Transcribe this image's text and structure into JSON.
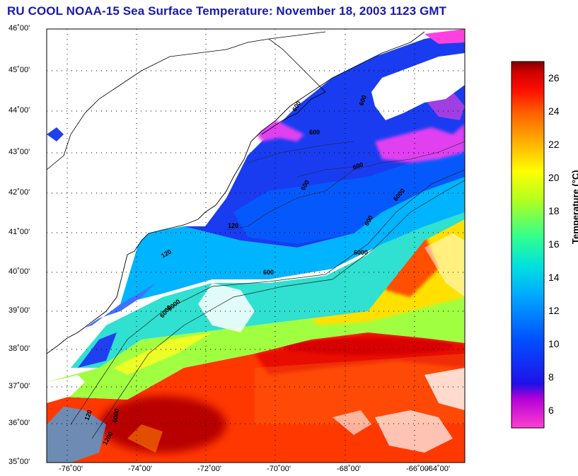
{
  "title": "RU COOL  NOAA-15  Sea Surface Temperature:  November 18, 2003 1123 GMT",
  "map": {
    "lat_ticks": [
      "46˚00'",
      "45˚00'",
      "44˚00'",
      "43˚00'",
      "42˚00'",
      "41˚00'",
      "40˚00'",
      "39˚00'",
      "38˚00'",
      "37˚00'",
      "36˚00'",
      "35˚00'"
    ],
    "lon_ticks": [
      "-76˚00'",
      "-74˚00'",
      "-72˚00'",
      "-70˚00'",
      "-68˚00'",
      "-66˚00'",
      "-64˚00'"
    ],
    "isobath_labels": [
      "600",
      "600",
      "600",
      "600",
      "6000",
      "600",
      "6000",
      "600",
      "120",
      "600",
      "120",
      "6000",
      "120",
      "6000",
      "1200",
      "6000"
    ]
  },
  "colorbar": {
    "label": "Temperature (°C)",
    "ticks": [
      "26",
      "24",
      "22",
      "20",
      "18",
      "16",
      "14",
      "12",
      "10",
      "8",
      "6"
    ],
    "range": [
      5,
      27
    ],
    "colors": [
      "#ff3fd0",
      "#b400d8",
      "#2010e8",
      "#0050ff",
      "#00a8ff",
      "#00e0e0",
      "#30ff90",
      "#b0ff20",
      "#ffff00",
      "#ffb000",
      "#ff6000",
      "#ff1000",
      "#d00000",
      "#800000"
    ]
  }
}
